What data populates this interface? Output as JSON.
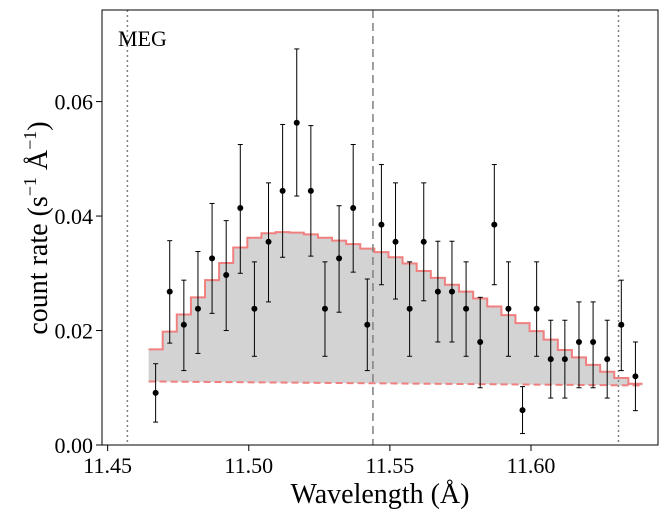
{
  "chart_data": {
    "type": "step-with-errorbars",
    "annotation": "MEG",
    "xlabel": "Wavelength (Å)",
    "ylabel_main": "count rate (s",
    "ylabel_sup1": "−1",
    "ylabel_mid": " Å",
    "ylabel_sup2": "−1",
    "ylabel_end": ")",
    "xlim": [
      11.448,
      11.645
    ],
    "ylim": [
      0.0,
      0.076
    ],
    "xticks": [
      11.45,
      11.5,
      11.55,
      11.6
    ],
    "xtick_labels": [
      "11.45",
      "11.50",
      "11.55",
      "11.60"
    ],
    "yticks": [
      0.0,
      0.02,
      0.04,
      0.06
    ],
    "ytick_labels": [
      "0.00",
      "0.02",
      "0.04",
      "0.06"
    ],
    "vlines": [
      {
        "x": 11.457,
        "style": "dotted",
        "color": "#808080"
      },
      {
        "x": 11.544,
        "style": "dashed",
        "color": "#808080"
      },
      {
        "x": 11.631,
        "style": "dotted",
        "color": "#808080"
      }
    ],
    "model_color": "#f08080",
    "fill_color": "#d3d3d3",
    "bin_edges": [
      11.4645,
      11.4695,
      11.4745,
      11.4795,
      11.4845,
      11.4895,
      11.4945,
      11.4995,
      11.5045,
      11.5095,
      11.5145,
      11.5195,
      11.5245,
      11.5295,
      11.5345,
      11.5395,
      11.5445,
      11.5495,
      11.5545,
      11.5595,
      11.5645,
      11.5695,
      11.5745,
      11.5795,
      11.5845,
      11.5895,
      11.5945,
      11.5995,
      11.6045,
      11.6095,
      11.6145,
      11.6195,
      11.6245,
      11.6295,
      11.6345,
      11.6395
    ],
    "model_values": [
      0.0167,
      0.0198,
      0.0228,
      0.0258,
      0.0288,
      0.0318,
      0.0345,
      0.0362,
      0.037,
      0.0372,
      0.0371,
      0.0368,
      0.0362,
      0.0357,
      0.0351,
      0.0343,
      0.0337,
      0.0328,
      0.0317,
      0.0304,
      0.0292,
      0.028,
      0.0268,
      0.0256,
      0.0242,
      0.0227,
      0.0213,
      0.0199,
      0.0184,
      0.0166,
      0.0153,
      0.014,
      0.0128,
      0.0117,
      0.0107
    ],
    "background": {
      "x": [
        11.4645,
        11.6395
      ],
      "y": [
        0.0111,
        0.0104
      ]
    },
    "data_points": [
      {
        "x": 11.467,
        "y": 0.0091,
        "lo": 0.004,
        "hi": 0.0142
      },
      {
        "x": 11.472,
        "y": 0.0268,
        "lo": 0.0178,
        "hi": 0.0357
      },
      {
        "x": 11.477,
        "y": 0.021,
        "lo": 0.013,
        "hi": 0.0288
      },
      {
        "x": 11.482,
        "y": 0.0238,
        "lo": 0.016,
        "hi": 0.0338
      },
      {
        "x": 11.487,
        "y": 0.0326,
        "lo": 0.023,
        "hi": 0.0422
      },
      {
        "x": 11.492,
        "y": 0.0297,
        "lo": 0.02,
        "hi": 0.0392
      },
      {
        "x": 11.497,
        "y": 0.0414,
        "lo": 0.03,
        "hi": 0.0525
      },
      {
        "x": 11.502,
        "y": 0.0238,
        "lo": 0.0155,
        "hi": 0.032
      },
      {
        "x": 11.507,
        "y": 0.0355,
        "lo": 0.025,
        "hi": 0.0458
      },
      {
        "x": 11.512,
        "y": 0.0444,
        "lo": 0.0328,
        "hi": 0.056
      },
      {
        "x": 11.517,
        "y": 0.0563,
        "lo": 0.0435,
        "hi": 0.0692
      },
      {
        "x": 11.522,
        "y": 0.0444,
        "lo": 0.033,
        "hi": 0.0558
      },
      {
        "x": 11.527,
        "y": 0.0238,
        "lo": 0.0155,
        "hi": 0.032
      },
      {
        "x": 11.532,
        "y": 0.0326,
        "lo": 0.0232,
        "hi": 0.0418
      },
      {
        "x": 11.537,
        "y": 0.0414,
        "lo": 0.0302,
        "hi": 0.0525
      },
      {
        "x": 11.542,
        "y": 0.021,
        "lo": 0.013,
        "hi": 0.029
      },
      {
        "x": 11.547,
        "y": 0.0385,
        "lo": 0.028,
        "hi": 0.049
      },
      {
        "x": 11.552,
        "y": 0.0355,
        "lo": 0.0255,
        "hi": 0.0458
      },
      {
        "x": 11.557,
        "y": 0.0238,
        "lo": 0.0155,
        "hi": 0.032
      },
      {
        "x": 11.562,
        "y": 0.0355,
        "lo": 0.0252,
        "hi": 0.0458
      },
      {
        "x": 11.567,
        "y": 0.0268,
        "lo": 0.018,
        "hi": 0.0356
      },
      {
        "x": 11.572,
        "y": 0.0268,
        "lo": 0.018,
        "hi": 0.0356
      },
      {
        "x": 11.577,
        "y": 0.0238,
        "lo": 0.0155,
        "hi": 0.032
      },
      {
        "x": 11.582,
        "y": 0.018,
        "lo": 0.01,
        "hi": 0.0258
      },
      {
        "x": 11.587,
        "y": 0.0385,
        "lo": 0.028,
        "hi": 0.049
      },
      {
        "x": 11.592,
        "y": 0.0238,
        "lo": 0.0155,
        "hi": 0.032
      },
      {
        "x": 11.597,
        "y": 0.0061,
        "lo": 0.002,
        "hi": 0.0102
      },
      {
        "x": 11.602,
        "y": 0.0238,
        "lo": 0.0155,
        "hi": 0.032
      },
      {
        "x": 11.607,
        "y": 0.015,
        "lo": 0.0082,
        "hi": 0.0218
      },
      {
        "x": 11.612,
        "y": 0.015,
        "lo": 0.0082,
        "hi": 0.0218
      },
      {
        "x": 11.617,
        "y": 0.018,
        "lo": 0.01,
        "hi": 0.025
      },
      {
        "x": 11.622,
        "y": 0.018,
        "lo": 0.01,
        "hi": 0.025
      },
      {
        "x": 11.627,
        "y": 0.015,
        "lo": 0.0082,
        "hi": 0.0218
      },
      {
        "x": 11.632,
        "y": 0.021,
        "lo": 0.013,
        "hi": 0.0288
      },
      {
        "x": 11.637,
        "y": 0.012,
        "lo": 0.006,
        "hi": 0.018
      }
    ]
  }
}
